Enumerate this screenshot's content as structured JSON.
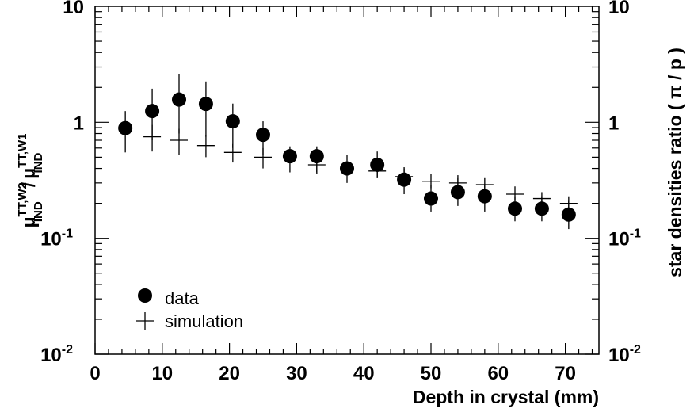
{
  "chart_data": {
    "type": "scatter",
    "xlabel": "Depth in crystal (mm)",
    "ylabel_left": {
      "mu1": "μ",
      "sup1": "TT,W2",
      "sub1": "IND",
      "slash": "/",
      "mu2": "μ",
      "sup2": "TT,W1",
      "sub2": "IND"
    },
    "ylabel_right": "star densities ratio ( π / p )",
    "xlim": [
      0,
      75
    ],
    "ylim": [
      0.01,
      10
    ],
    "yscale": "log",
    "x_ticks": [
      "0",
      "10",
      "20",
      "30",
      "40",
      "50",
      "60",
      "70"
    ],
    "y_ticks_left": [
      {
        "value": 10,
        "base": "10",
        "exp": ""
      },
      {
        "value": 1,
        "base": "1",
        "exp": ""
      },
      {
        "value": 0.1,
        "base": "10",
        "exp": "-1"
      },
      {
        "value": 0.01,
        "base": "10",
        "exp": "-2"
      }
    ],
    "y_ticks_right": [
      {
        "value": 10,
        "base": "10",
        "exp": ""
      },
      {
        "value": 1,
        "base": "1",
        "exp": ""
      },
      {
        "value": 0.1,
        "base": "10",
        "exp": "-1"
      },
      {
        "value": 0.01,
        "base": "10",
        "exp": "-2"
      }
    ],
    "legend": {
      "position": "bottom-left",
      "entries": [
        {
          "label": "data",
          "marker": "filled-circle"
        },
        {
          "label": "simulation",
          "marker": "cross"
        }
      ]
    },
    "series": [
      {
        "name": "data",
        "marker": "filled-circle",
        "x": [
          4.5,
          8.5,
          12.5,
          16.5,
          20.5,
          25,
          29,
          33,
          37.5,
          42,
          46,
          50,
          54,
          58,
          62.5,
          66.5,
          70.5
        ],
        "y": [
          0.89,
          1.25,
          1.57,
          1.44,
          1.02,
          0.78,
          0.51,
          0.51,
          0.4,
          0.43,
          0.32,
          0.22,
          0.25,
          0.23,
          0.18,
          0.18,
          0.16
        ],
        "y_low": [
          0.55,
          0.7,
          0.8,
          0.75,
          0.6,
          0.52,
          0.37,
          0.37,
          0.3,
          0.33,
          0.24,
          0.17,
          0.19,
          0.17,
          0.14,
          0.14,
          0.12
        ],
        "y_high": [
          1.25,
          1.95,
          2.6,
          2.25,
          1.45,
          1.02,
          0.62,
          0.62,
          0.52,
          0.56,
          0.41,
          0.29,
          0.33,
          0.29,
          0.23,
          0.23,
          0.21
        ]
      },
      {
        "name": "simulation",
        "marker": "cross",
        "x": [
          8.5,
          12.5,
          16.5,
          20.5,
          25,
          33,
          42,
          46,
          50,
          54,
          58,
          62.5,
          66.5,
          70.5
        ],
        "y": [
          0.75,
          0.7,
          0.63,
          0.55,
          0.5,
          0.43,
          0.38,
          0.34,
          0.31,
          0.3,
          0.29,
          0.24,
          0.22,
          0.2
        ],
        "y_low": [
          0.56,
          0.52,
          0.5,
          0.45,
          0.4,
          0.36,
          0.33,
          0.29,
          0.27,
          0.26,
          0.25,
          0.21,
          0.19,
          0.17
        ],
        "y_high": [
          0.95,
          0.88,
          0.78,
          0.65,
          0.6,
          0.5,
          0.45,
          0.4,
          0.36,
          0.35,
          0.33,
          0.28,
          0.25,
          0.23
        ]
      }
    ]
  }
}
